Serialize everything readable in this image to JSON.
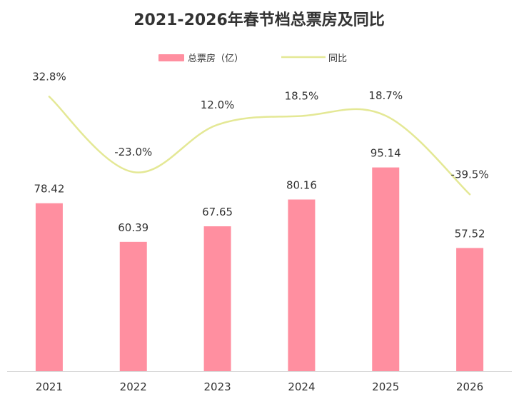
{
  "chart_data": {
    "type": "bar",
    "title": "2021-2026年春节档总票房及同比",
    "categories": [
      "2021",
      "2022",
      "2023",
      "2024",
      "2025",
      "2026"
    ],
    "series": [
      {
        "name": "总票房（亿）",
        "type": "bar",
        "values": [
          78.42,
          60.39,
          67.65,
          80.16,
          95.14,
          57.52
        ],
        "labels": [
          "78.42",
          "60.39",
          "67.65",
          "80.16",
          "95.14",
          "57.52"
        ],
        "color": "#ff8fa0"
      },
      {
        "name": "同比",
        "type": "line",
        "values": [
          32.8,
          -23.0,
          12.0,
          18.5,
          18.7,
          -39.5
        ],
        "labels": [
          "32.8%",
          "-23.0%",
          "12.0%",
          "18.5%",
          "18.7%",
          "-39.5%"
        ],
        "color": "#e4e895"
      }
    ],
    "legend_position": "top",
    "grid": false
  }
}
